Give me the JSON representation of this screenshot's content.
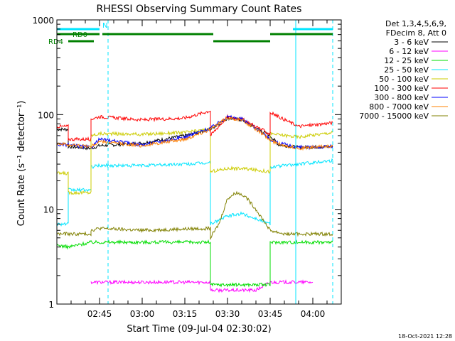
{
  "chart_data": {
    "type": "line",
    "title": "RHESSI Observing Summary Count Rates",
    "xlabel": "Start Time (09-Jul-04 02:30:02)",
    "ylabel": "Count Rate (s⁻¹ detector⁻¹)",
    "y_scale": "log",
    "ylim": [
      1,
      1000
    ],
    "y_ticks": [
      {
        "value": 1,
        "label": "1"
      },
      {
        "value": 10,
        "label": "10"
      },
      {
        "value": 100,
        "label": "100"
      },
      {
        "value": 1000,
        "label": "1000"
      }
    ],
    "xlim": [
      "02:30",
      "04:10"
    ],
    "x_ticks": [
      "02:45",
      "03:00",
      "03:15",
      "03:30",
      "03:45",
      "04:00"
    ],
    "grid": false,
    "legend_position": "right",
    "legend_header": [
      "Det 1,3,4,5,6,9,",
      "FDecim 8, Att 0"
    ],
    "timestamp": "18-Oct-2021 12:28",
    "flags": [
      {
        "label": "N",
        "color": "#00e5ff",
        "segments": [
          [
            "02:30",
            "02:45"
          ],
          [
            "03:53",
            "04:07"
          ]
        ],
        "level": 1
      },
      {
        "label": "RD0",
        "color": "#008000",
        "segments": [
          [
            "02:30",
            "02:45"
          ],
          [
            "02:46",
            "03:25"
          ],
          [
            "03:45",
            "04:07"
          ]
        ],
        "level": 2
      },
      {
        "label": "RD4",
        "color": "#008000",
        "segments": [
          [
            "02:34",
            "02:43"
          ],
          [
            "03:25",
            "03:45"
          ]
        ],
        "level": 3
      }
    ],
    "vertical_markers": [
      {
        "time": "02:30",
        "color": "#00e5ff",
        "style": "solid"
      },
      {
        "time": "02:48",
        "color": "#00e5ff",
        "style": "dashed"
      },
      {
        "time": "03:54",
        "color": "#00e5ff",
        "style": "solid"
      },
      {
        "time": "04:07",
        "color": "#00e5ff",
        "style": "dashed"
      }
    ],
    "series": [
      {
        "name": "3 - 6 keV",
        "color": "#000000",
        "points": [
          [
            "02:30",
            70
          ],
          [
            "02:34",
            70
          ],
          [
            "02:34",
            46
          ],
          [
            "02:42",
            44
          ],
          [
            "02:45",
            47
          ],
          [
            "03:00",
            50
          ],
          [
            "03:15",
            60
          ],
          [
            "03:24",
            70
          ],
          [
            "03:30",
            92
          ],
          [
            "03:35",
            88
          ],
          [
            "03:40",
            72
          ],
          [
            "03:45",
            60
          ],
          [
            "03:48",
            48
          ],
          [
            "03:55",
            45
          ],
          [
            "04:07",
            46
          ]
        ]
      },
      {
        "name": "6 - 12 keV",
        "color": "#ff00ff",
        "points": [
          [
            "02:42",
            1.7
          ],
          [
            "02:45",
            1.7
          ],
          [
            "03:00",
            1.7
          ],
          [
            "03:15",
            1.7
          ],
          [
            "03:24",
            1.7
          ],
          [
            "03:24",
            1.4
          ],
          [
            "03:30",
            1.4
          ],
          [
            "03:40",
            1.4
          ],
          [
            "03:45",
            1.7
          ],
          [
            "03:55",
            1.7
          ],
          [
            "04:00",
            1.7
          ]
        ]
      },
      {
        "name": "12 - 25 keV",
        "color": "#00dd00",
        "points": [
          [
            "02:30",
            4.2
          ],
          [
            "02:34",
            4.0
          ],
          [
            "02:42",
            4.5
          ],
          [
            "02:45",
            4.5
          ],
          [
            "03:00",
            4.5
          ],
          [
            "03:15",
            4.5
          ],
          [
            "03:24",
            4.5
          ],
          [
            "03:24",
            1.6
          ],
          [
            "03:30",
            1.6
          ],
          [
            "03:40",
            1.6
          ],
          [
            "03:45",
            1.6
          ],
          [
            "03:45",
            4.5
          ],
          [
            "04:00",
            4.5
          ],
          [
            "04:07",
            4.5
          ]
        ]
      },
      {
        "name": "25 - 50 keV",
        "color": "#00e5ff",
        "points": [
          [
            "02:30",
            7
          ],
          [
            "02:34",
            7
          ],
          [
            "02:34",
            16
          ],
          [
            "02:42",
            16
          ],
          [
            "02:42",
            28
          ],
          [
            "02:45",
            29
          ],
          [
            "03:00",
            29
          ],
          [
            "03:15",
            30
          ],
          [
            "03:24",
            31
          ],
          [
            "03:24",
            7
          ],
          [
            "03:30",
            8.5
          ],
          [
            "03:35",
            9
          ],
          [
            "03:40",
            8
          ],
          [
            "03:45",
            7
          ],
          [
            "03:45",
            28
          ],
          [
            "03:55",
            30
          ],
          [
            "04:07",
            33
          ]
        ]
      },
      {
        "name": "50 - 100 keV",
        "color": "#cccc00",
        "points": [
          [
            "02:30",
            24
          ],
          [
            "02:34",
            24
          ],
          [
            "02:34",
            15
          ],
          [
            "02:42",
            15
          ],
          [
            "02:42",
            60
          ],
          [
            "02:45",
            63
          ],
          [
            "03:00",
            62
          ],
          [
            "03:15",
            65
          ],
          [
            "03:24",
            70
          ],
          [
            "03:24",
            25
          ],
          [
            "03:30",
            27
          ],
          [
            "03:35",
            27
          ],
          [
            "03:40",
            26
          ],
          [
            "03:45",
            25
          ],
          [
            "03:45",
            63
          ],
          [
            "03:55",
            58
          ],
          [
            "04:07",
            65
          ]
        ]
      },
      {
        "name": "100 - 300 keV",
        "color": "#ff0000",
        "points": [
          [
            "02:30",
            75
          ],
          [
            "02:34",
            75
          ],
          [
            "02:34",
            55
          ],
          [
            "02:42",
            55
          ],
          [
            "02:42",
            90
          ],
          [
            "02:45",
            95
          ],
          [
            "03:00",
            88
          ],
          [
            "03:15",
            92
          ],
          [
            "03:24",
            110
          ],
          [
            "03:24",
            60
          ],
          [
            "03:30",
            95
          ],
          [
            "03:35",
            90
          ],
          [
            "03:40",
            75
          ],
          [
            "03:45",
            62
          ],
          [
            "03:45",
            105
          ],
          [
            "03:55",
            75
          ],
          [
            "04:07",
            82
          ]
        ]
      },
      {
        "name": "300 - 800 keV",
        "color": "#0000ff",
        "points": [
          [
            "02:30",
            48
          ],
          [
            "02:34",
            48
          ],
          [
            "02:42",
            45
          ],
          [
            "02:45",
            55
          ],
          [
            "03:00",
            48
          ],
          [
            "03:15",
            58
          ],
          [
            "03:24",
            72
          ],
          [
            "03:30",
            95
          ],
          [
            "03:35",
            90
          ],
          [
            "03:40",
            72
          ],
          [
            "03:45",
            55
          ],
          [
            "03:48",
            50
          ],
          [
            "03:55",
            45
          ],
          [
            "04:07",
            46
          ]
        ]
      },
      {
        "name": "800 - 7000 keV",
        "color": "#ff8000",
        "points": [
          [
            "02:30",
            50
          ],
          [
            "02:34",
            48
          ],
          [
            "02:42",
            46
          ],
          [
            "02:45",
            52
          ],
          [
            "03:00",
            47
          ],
          [
            "03:15",
            55
          ],
          [
            "03:24",
            70
          ],
          [
            "03:30",
            93
          ],
          [
            "03:35",
            88
          ],
          [
            "03:40",
            70
          ],
          [
            "03:45",
            54
          ],
          [
            "03:48",
            49
          ],
          [
            "03:55",
            44
          ],
          [
            "04:07",
            47
          ]
        ]
      },
      {
        "name": "7000 - 15000 keV",
        "color": "#808000",
        "points": [
          [
            "02:30",
            5.5
          ],
          [
            "02:42",
            5.5
          ],
          [
            "02:42",
            6
          ],
          [
            "02:45",
            6.3
          ],
          [
            "03:00",
            6
          ],
          [
            "03:15",
            6.2
          ],
          [
            "03:24",
            6.3
          ],
          [
            "03:24",
            5
          ],
          [
            "03:27",
            7
          ],
          [
            "03:30",
            13
          ],
          [
            "03:33",
            15
          ],
          [
            "03:36",
            14
          ],
          [
            "03:40",
            10
          ],
          [
            "03:45",
            6
          ],
          [
            "03:50",
            5.5
          ],
          [
            "04:07",
            5.5
          ]
        ]
      }
    ]
  }
}
